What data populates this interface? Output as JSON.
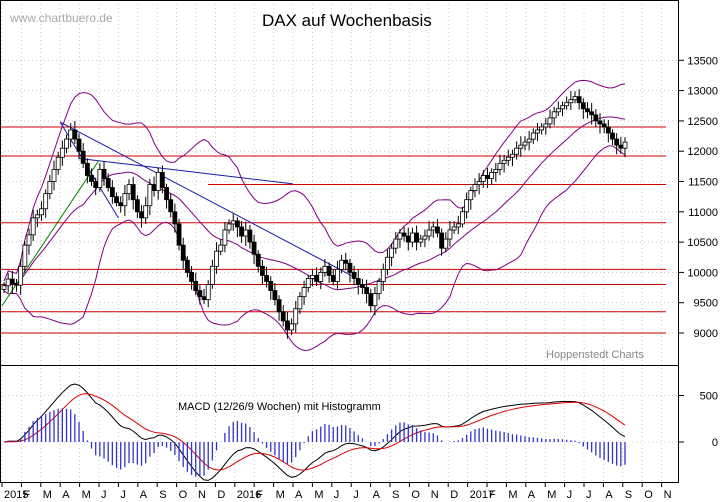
{
  "header": {
    "watermark": "www.chartbuero.de",
    "title": "DAX auf Wochenbasis",
    "source": "Hoppenstedt Charts"
  },
  "colors": {
    "candle": "#000000",
    "support_resistance": "#cc0000",
    "bollinger": "#800080",
    "trend_down": "#1a1aaa",
    "trend_up": "#008000",
    "macd_line": "#000000",
    "signal_line": "#dd0000",
    "histogram": "#3333cc",
    "grid": "#aaaaaa",
    "frame": "#000000"
  },
  "chart_data": [
    {
      "type": "candlestick",
      "title": "DAX auf Wochenbasis",
      "x_ticks": [
        "2015",
        "F",
        "M",
        "A",
        "M",
        "J",
        "J",
        "A",
        "S",
        "O",
        "N",
        "D",
        "2016",
        "F",
        "M",
        "A",
        "M",
        "J",
        "J",
        "A",
        "S",
        "O",
        "N",
        "D",
        "2017",
        "F",
        "M",
        "A",
        "M",
        "J",
        "J",
        "A",
        "S",
        "O",
        "N"
      ],
      "y_ticks": [
        9000,
        9500,
        10000,
        10500,
        11000,
        11500,
        12000,
        12500,
        13000,
        13500
      ],
      "ylim": [
        8600,
        13600
      ],
      "grid": "dashed",
      "horizontal_levels": [
        12400,
        11920,
        11450,
        10820,
        10050,
        9800,
        9350,
        9000
      ],
      "trendlines": [
        {
          "kind": "down",
          "from": [
            "2015-04",
            12480
          ],
          "to": [
            "2016-07",
            9950
          ]
        },
        {
          "kind": "down",
          "from": [
            "2015-04",
            12480
          ],
          "to": [
            "2015-07",
            10900
          ]
        },
        {
          "kind": "down",
          "from": [
            "2015-05",
            11880
          ],
          "to": [
            "2016-04",
            11460
          ]
        },
        {
          "kind": "up",
          "from": [
            "2015-01",
            9450
          ],
          "to": [
            "2015-06",
            11850
          ]
        }
      ],
      "bollinger": {
        "period": 20,
        "stddev": 2
      },
      "weekly_close": [
        9780,
        9890,
        9810,
        9790,
        10100,
        10450,
        10620,
        10900,
        10950,
        11050,
        11300,
        11500,
        11700,
        11900,
        12050,
        12200,
        12350,
        12200,
        12000,
        11800,
        11600,
        11500,
        11400,
        11700,
        11550,
        11400,
        11250,
        11150,
        11100,
        11300,
        11450,
        11200,
        11000,
        10900,
        11100,
        11450,
        11350,
        11650,
        11400,
        11200,
        11000,
        10800,
        10450,
        10200,
        10000,
        9850,
        9700,
        9600,
        9550,
        9800,
        10100,
        10350,
        10450,
        10700,
        10800,
        10850,
        10750,
        10600,
        10700,
        10500,
        10300,
        10100,
        9950,
        9850,
        9700,
        9550,
        9350,
        9200,
        9050,
        9150,
        9400,
        9600,
        9750,
        9900,
        9950,
        9850,
        10000,
        10100,
        9950,
        9850,
        10050,
        10200,
        10150,
        10000,
        9900,
        9800,
        9750,
        9650,
        9450,
        9650,
        9850,
        10050,
        10250,
        10400,
        10550,
        10650,
        10600,
        10500,
        10650,
        10500,
        10550,
        10600,
        10700,
        10750,
        10650,
        10400,
        10550,
        10700,
        10750,
        10800,
        11000,
        11200,
        11350,
        11450,
        11500,
        11600,
        11550,
        11650,
        11700,
        11800,
        11850,
        11900,
        11950,
        12050,
        12100,
        12150,
        12200,
        12300,
        12350,
        12400,
        12450,
        12550,
        12650,
        12700,
        12750,
        12800,
        12850,
        12900,
        12800,
        12700,
        12650,
        12600,
        12500,
        12450,
        12400,
        12300,
        12200,
        12100,
        12050,
        12150
      ]
    },
    {
      "type": "line",
      "title": "MACD (12/26/9 Wochen) mit Histogramm",
      "y_ticks": [
        0,
        500
      ],
      "series": [
        {
          "role": "macd",
          "color": "black"
        },
        {
          "role": "signal",
          "color": "red"
        },
        {
          "role": "histogram",
          "color": "blue"
        }
      ]
    }
  ]
}
